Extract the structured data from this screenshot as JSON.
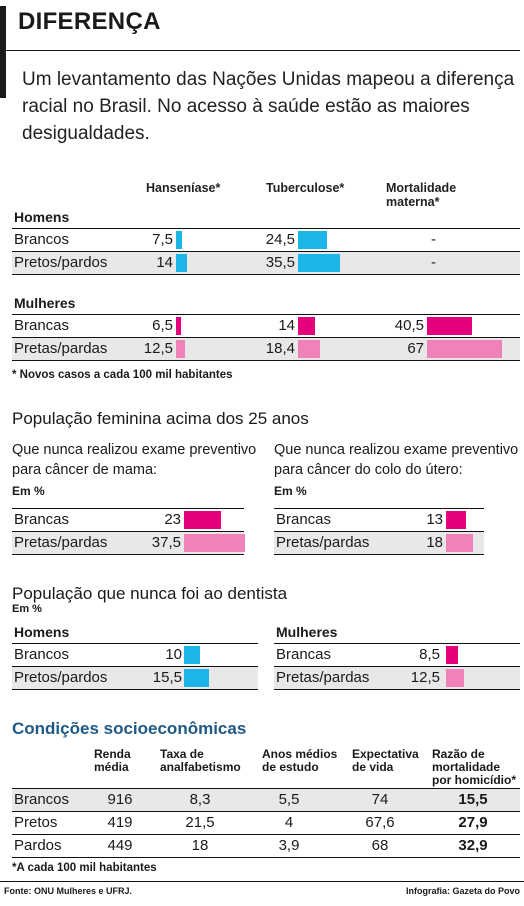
{
  "title": "DIFERENÇA",
  "intro": "Um levantamento das Nações Unidas mapeou a diferença racial no Brasil. No acesso à saúde estão as maiores desigualdades.",
  "colors": {
    "men": "#1bb5e8",
    "women_dark": "#e5007e",
    "women_light": "#ee82b9",
    "blue_title": "#1f5a86",
    "shade": "#e8e8e8"
  },
  "chart_data": [
    {
      "type": "bar",
      "title": "",
      "columns": [
        "Hanseníase*",
        "Tuberculose*",
        "Mortalidade materna*"
      ],
      "groups": [
        {
          "name": "Homens",
          "rows": [
            {
              "label": "Brancos",
              "values": [
                "7,5",
                "24,5",
                "-"
              ],
              "numeric": [
                7.5,
                24.5,
                null
              ]
            },
            {
              "label": "Pretos/pardos",
              "values": [
                "14",
                "35,5",
                "-"
              ],
              "numeric": [
                14,
                35.5,
                null
              ]
            }
          ]
        },
        {
          "name": "Mulheres",
          "rows": [
            {
              "label": "Brancas",
              "values": [
                "6,5",
                "14",
                "40,5"
              ],
              "numeric": [
                6.5,
                14,
                40.5
              ]
            },
            {
              "label": "Pretas/pardas",
              "values": [
                "12,5",
                "18,4",
                "67"
              ],
              "numeric": [
                12.5,
                18.4,
                67
              ]
            }
          ]
        }
      ],
      "note": "* Novos casos a cada 100 mil habitantes"
    },
    {
      "type": "bar",
      "title": "População feminina acima dos 25 anos",
      "panels": [
        {
          "question": "Que nunca realizou exame preventivo para câncer de mama:",
          "unit": "Em %",
          "rows": [
            {
              "label": "Brancas",
              "value": "23",
              "numeric": 23
            },
            {
              "label": "Pretas/pardas",
              "value": "37,5",
              "numeric": 37.5
            }
          ]
        },
        {
          "question": "Que nunca realizou exame preventivo para câncer do colo do útero:",
          "unit": "Em %",
          "rows": [
            {
              "label": "Brancas",
              "value": "13",
              "numeric": 13
            },
            {
              "label": "Pretas/pardas",
              "value": "18",
              "numeric": 18
            }
          ]
        }
      ]
    },
    {
      "type": "bar",
      "title": "População que nunca foi ao dentista",
      "unit": "Em %",
      "panels": [
        {
          "group": "Homens",
          "rows": [
            {
              "label": "Brancos",
              "value": "10",
              "numeric": 10
            },
            {
              "label": "Pretos/pardos",
              "value": "15,5",
              "numeric": 15.5
            }
          ]
        },
        {
          "group": "Mulheres",
          "rows": [
            {
              "label": "Brancas",
              "value": "8,5",
              "numeric": 8.5
            },
            {
              "label": "Pretas/pardas",
              "value": "12,5",
              "numeric": 12.5
            }
          ]
        }
      ]
    },
    {
      "type": "table",
      "title": "Condições socioeconômicas",
      "headers": [
        "Renda média",
        "Taxa de analfabetismo",
        "Anos médios de estudo",
        "Expectativa de vida",
        "Razão de mortalidade por homicídio*"
      ],
      "rows": [
        {
          "label": "Brancos",
          "values": [
            "916",
            "8,3",
            "5,5",
            "74",
            "15,5"
          ]
        },
        {
          "label": "Pretos",
          "values": [
            "419",
            "21,5",
            "4",
            "67,6",
            "27,9"
          ]
        },
        {
          "label": "Pardos",
          "values": [
            "449",
            "18",
            "3,9",
            "68",
            "32,9"
          ]
        }
      ],
      "note": "*A cada 100 mil habitantes"
    }
  ],
  "footer": {
    "source": "Fonte: ONU Mulheres e UFRJ.",
    "credit": "Infografia: Gazeta do Povo"
  }
}
